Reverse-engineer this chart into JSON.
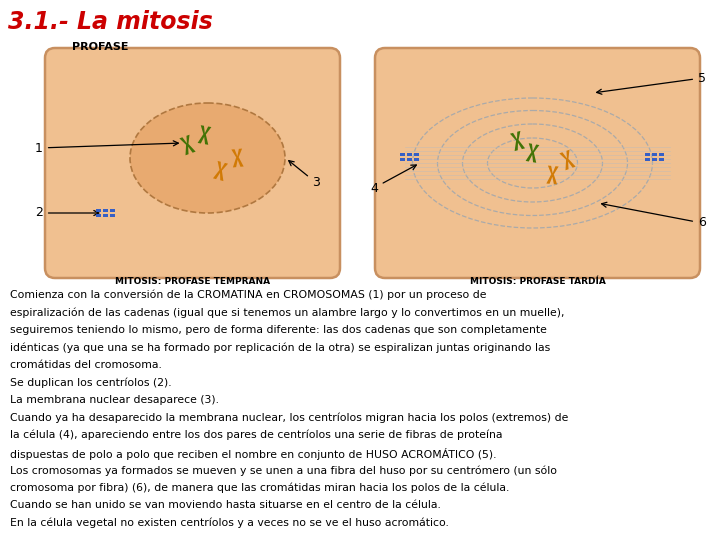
{
  "title": "3.1.- La mitosis",
  "title_color": "#cc0000",
  "subtitle": "PROFASE",
  "subtitle_color": "#000000",
  "bg_color": "#ffffff",
  "cell_fill": "#f0c090",
  "cell_edge": "#c89060",
  "label_color": "#000000",
  "bottom_label1": "MITOSIS: PROFASE TEMPRANA",
  "bottom_label2": "MITOSIS: PROFASE TARDÍA",
  "body_text": [
    "Comienza con la conversión de la CROMATINA en CROMOSOMAS (1) por un proceso de",
    "espiralización de las cadenas (igual que si tenemos un alambre largo y lo convertimos en un muelle),",
    "seguiremos teniendo lo mismo, pero de forma diferente: las dos cadenas que son completamente",
    "idénticas (ya que una se ha formado por replicación de la otra) se espiralizan juntas originando las",
    "cromátidas del cromosoma.",
    "Se duplican los centríolos (2).",
    "La membrana nuclear desaparece (3).",
    "Cuando ya ha desaparecido la membrana nuclear, los centríolos migran hacia los polos (extremos) de",
    "la célula (4), apareciendo entre los dos pares de centríolos una serie de fibras de proteína",
    "dispuestas de polo a polo que reciben el nombre en conjunto de HUSO ACROMÁTICO (5).",
    "Los cromosomas ya formados se mueven y se unen a una fibra del huso por su centrómero (un sólo",
    "cromosoma por fibra) (6), de manera que las cromátidas miran hacia los polos de la célula.",
    "Cuando se han unido se van moviendo hasta situarse en el centro de la célula.",
    "En la célula vegetal no existen centríolos y a veces no se ve el huso acromático."
  ],
  "chrom_green": "#3a7000",
  "chrom_orange": "#d07800",
  "centri_blue": "#2255cc",
  "nucleus_edge": "#b07840"
}
